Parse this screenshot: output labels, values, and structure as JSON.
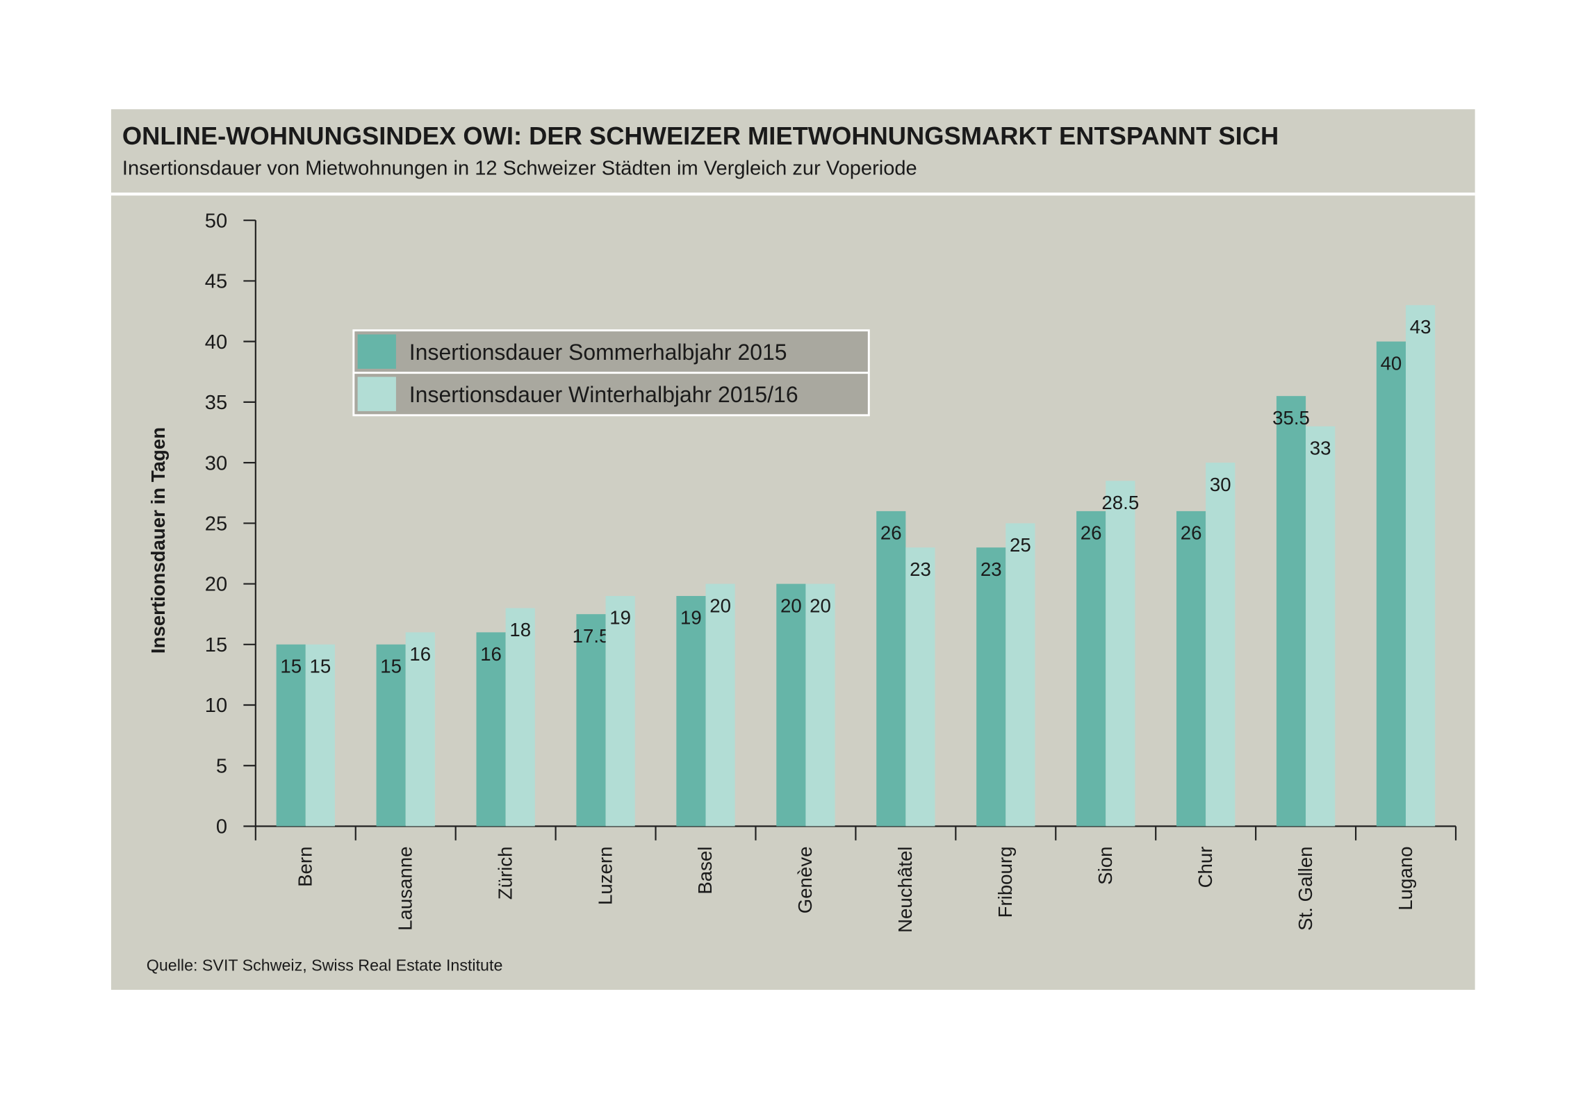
{
  "chart_data": {
    "type": "bar",
    "title": "ONLINE-WOHNUNGSINDEX OWI: DER SCHWEIZER MIETWOHNUNGSMARKT ENTSPANNT SICH",
    "subtitle": "Insertionsdauer von Mietwohnungen in 12 Schweizer Städten im Vergleich zur Voperiode",
    "y_label": "Insertionsdauer in Tagen",
    "source": "Quelle: SVIT Schweiz, Swiss Real Estate Institute",
    "categories": [
      "Bern",
      "Lausanne",
      "Zürich",
      "Luzern",
      "Basel",
      "Genève",
      "Neuchâtel",
      "Fribourg",
      "Sion",
      "Chur",
      "St. Gallen",
      "Lugano"
    ],
    "series": [
      {
        "name": "Insertionsdauer Sommerhalbjahr 2015",
        "color": "#66b5a8",
        "values": [
          15,
          15,
          16,
          17.5,
          19,
          20,
          26,
          23,
          26,
          26,
          35.5,
          40
        ]
      },
      {
        "name": "Insertionsdauer Winterhalbjahr 2015/16",
        "color": "#b2ddd5",
        "values": [
          15,
          16,
          18,
          19,
          20,
          20,
          23,
          25,
          28.5,
          30,
          33,
          43
        ]
      }
    ],
    "ylim": [
      0,
      50
    ],
    "yticks": [
      0,
      5,
      10,
      15,
      20,
      25,
      30,
      35,
      40,
      45,
      50
    ]
  }
}
